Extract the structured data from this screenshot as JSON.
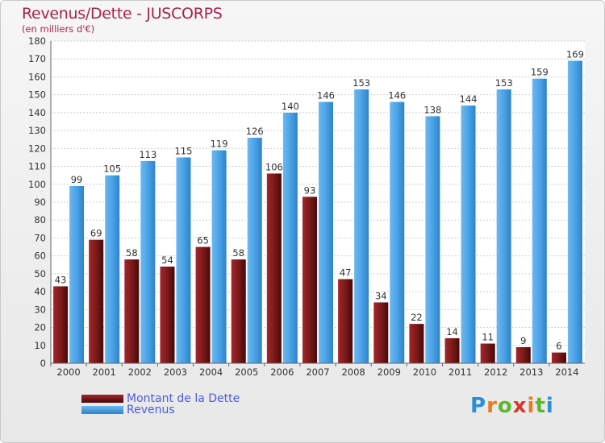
{
  "title": "Revenus/Dette - JUSCORPS",
  "subtitle": "(en milliers d'€)",
  "brand": {
    "text": "Proxiti",
    "colors": [
      "#2a8fd6",
      "#f07a1a",
      "#5cb82e",
      "#d63a2a"
    ]
  },
  "colors": {
    "dette": "#7a1a1a",
    "revenus": "#4aa3e6",
    "title": "#a6234f",
    "legend_text": "#4a5be0"
  },
  "chart_data": {
    "type": "bar",
    "categories": [
      "2000",
      "2001",
      "2002",
      "2003",
      "2004",
      "2005",
      "2006",
      "2007",
      "2008",
      "2009",
      "2010",
      "2011",
      "2012",
      "2013",
      "2014"
    ],
    "series": [
      {
        "name": "Montant de la Dette",
        "values": [
          43,
          69,
          58,
          54,
          65,
          58,
          106,
          93,
          47,
          34,
          22,
          14,
          11,
          9,
          6
        ]
      },
      {
        "name": "Revenus",
        "values": [
          99,
          105,
          113,
          115,
          119,
          126,
          140,
          146,
          153,
          146,
          138,
          144,
          153,
          159,
          169
        ]
      }
    ],
    "ylim": [
      0,
      180
    ],
    "yticks": [
      0,
      10,
      20,
      30,
      40,
      50,
      60,
      70,
      80,
      90,
      100,
      110,
      120,
      130,
      140,
      150,
      160,
      170,
      180
    ],
    "grid": true,
    "legend": "bottom-left"
  }
}
